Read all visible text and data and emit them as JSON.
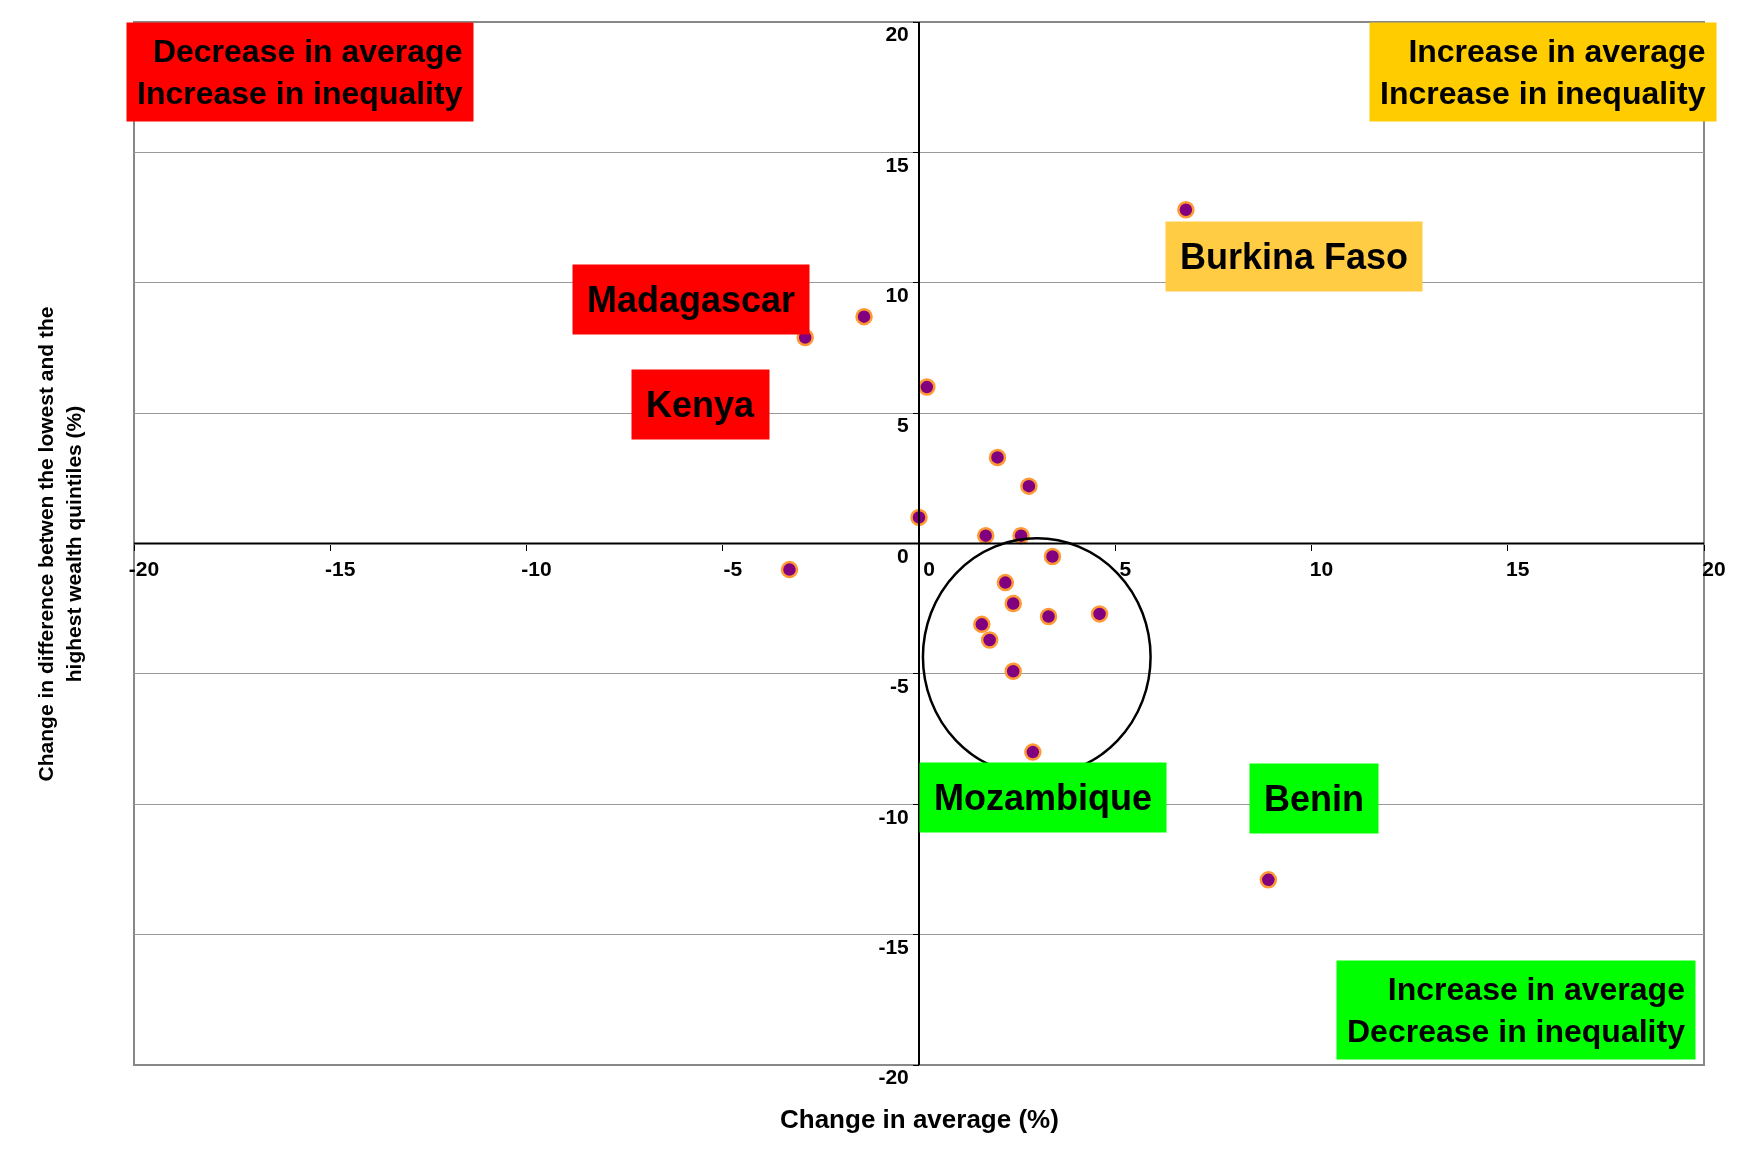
{
  "chart_data": {
    "type": "scatter",
    "xlabel": "Change in average (%)",
    "ylabel": "Change in difference betwen the lowest and the\nhighest wealth quintiles (%)",
    "x": [
      6.8,
      -1.4,
      -2.9,
      0.2,
      2.0,
      2.8,
      0.0,
      1.7,
      2.6,
      3.4,
      -3.3,
      2.2,
      2.4,
      3.3,
      4.6,
      1.6,
      1.8,
      2.4,
      2.9,
      8.9
    ],
    "values": [
      12.8,
      8.7,
      7.9,
      6.0,
      3.3,
      2.2,
      1.0,
      0.3,
      0.3,
      -0.5,
      -1.0,
      -1.5,
      -2.3,
      -2.8,
      -2.7,
      -3.1,
      -3.7,
      -4.9,
      -8.0,
      -12.9
    ],
    "color": "#800080",
    "marker": "circle",
    "xlim": [
      -20,
      20
    ],
    "xticks": [
      -20,
      -15,
      -10,
      -5,
      0,
      5,
      10,
      15,
      20
    ],
    "ylim": [
      -20,
      20
    ],
    "yticks": [
      -20,
      -15,
      -10,
      -5,
      0,
      5,
      10,
      15,
      20
    ],
    "grid": "y",
    "annotations": [
      "Decrease in average\nIncrease in inequality",
      "Increase in average\nIncrease in inequality",
      "Increase in average\nDecrease in inequality",
      "Burkina Faso",
      "Madagascar",
      "Kenya",
      "Mozambique",
      "Benin"
    ]
  }
}
